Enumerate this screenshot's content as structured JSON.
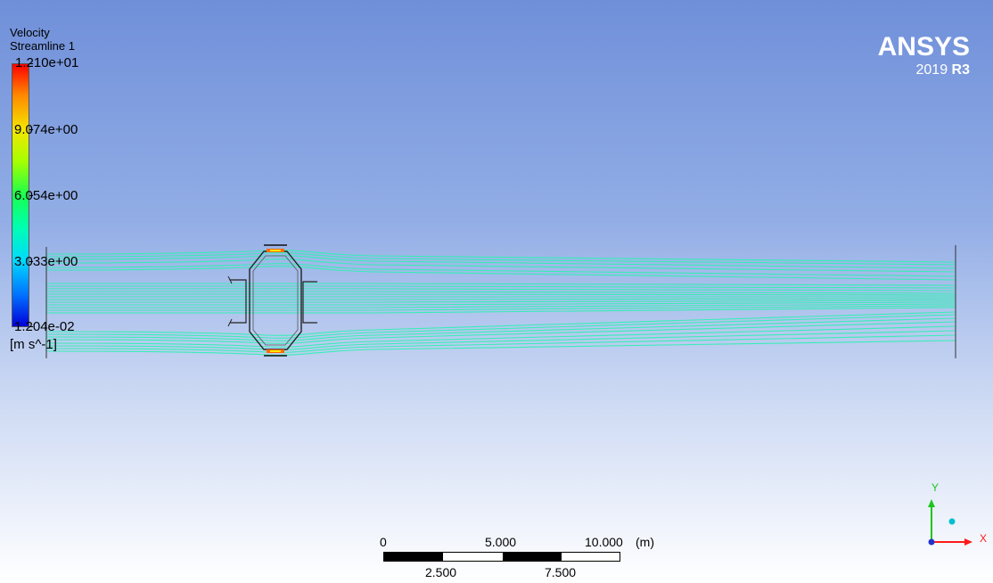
{
  "legend": {
    "title": "Velocity",
    "subtitle": "Streamline 1",
    "ticks": [
      "1.210e+01",
      "9.074e+00",
      "6.054e+00",
      "3.033e+00",
      "1.204e-02"
    ],
    "units": "[m s^-1]"
  },
  "brand": {
    "name": "ANSYS",
    "version_year": "2019",
    "version_release": "R3"
  },
  "scale": {
    "top_labels": [
      "0",
      "5.000",
      "10.000"
    ],
    "unit": "(m)",
    "bottom_labels": [
      "2.500",
      "7.500"
    ]
  },
  "axes": {
    "x_label": "X",
    "y_label": "Y"
  },
  "colors": {
    "streamline": "#2ff0b4",
    "background_top": "#6f8fd9",
    "background_bottom": "#ffffff",
    "axis_x": "#ff1a1a",
    "axis_y": "#1fc41f",
    "axis_z": "#00c0d0"
  }
}
